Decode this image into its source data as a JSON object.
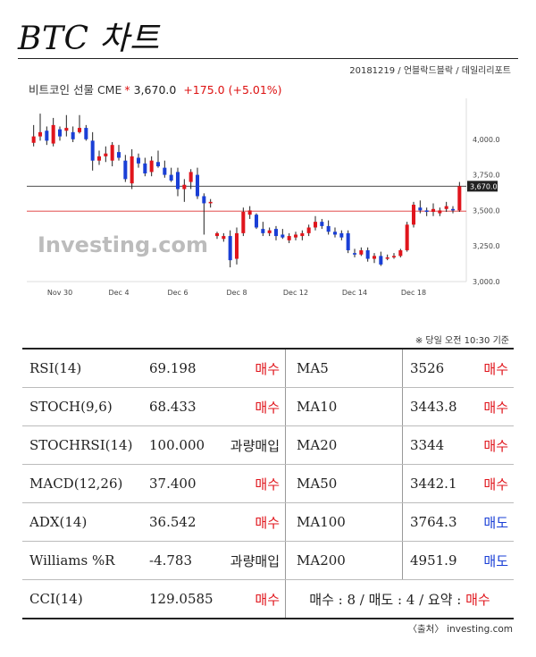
{
  "header": {
    "title": "BTC 차트",
    "meta": "20181219 / 언블락드블락 / 데일리리포트"
  },
  "quote": {
    "instrument": "비트코인 선물 CME",
    "marker": "*",
    "price": "3,670.0",
    "change": "+175.0",
    "change_pct": "(+5.01%)"
  },
  "watermark": "Investing.com",
  "colors": {
    "up": "#e0151c",
    "down": "#1a3fd6",
    "buy": "#e0151c",
    "sell": "#1a3fd6"
  },
  "chart_data": {
    "type": "candlestick",
    "x_tick_labels": [
      "Nov 30",
      "Dec 4",
      "Dec 6",
      "Dec 8",
      "Dec 12",
      "Dec 14",
      "Dec 18"
    ],
    "y_tick_labels": [
      "4,000.0",
      "3,750.0",
      "3,500.0",
      "3,250.0",
      "3,000.0"
    ],
    "ylim": [
      3000,
      4250
    ],
    "price_label": "3,670.0",
    "price_line": 3670,
    "reference_line": 3495,
    "candles": [
      {
        "o": 3975,
        "h": 4100,
        "l": 3950,
        "c": 4020
      },
      {
        "o": 4020,
        "h": 4180,
        "l": 3990,
        "c": 4050
      },
      {
        "o": 4060,
        "h": 4090,
        "l": 3960,
        "c": 3990
      },
      {
        "o": 3970,
        "h": 4150,
        "l": 3950,
        "c": 4100
      },
      {
        "o": 4070,
        "h": 4090,
        "l": 3990,
        "c": 4020
      },
      {
        "o": 4060,
        "h": 4170,
        "l": 4020,
        "c": 4080
      },
      {
        "o": 4050,
        "h": 4090,
        "l": 3980,
        "c": 4000
      },
      {
        "o": 4050,
        "h": 4170,
        "l": 4040,
        "c": 4080
      },
      {
        "o": 4080,
        "h": 4100,
        "l": 3990,
        "c": 4000
      },
      {
        "o": 3990,
        "h": 4050,
        "l": 3780,
        "c": 3850
      },
      {
        "o": 3850,
        "h": 3920,
        "l": 3820,
        "c": 3880
      },
      {
        "o": 3880,
        "h": 3950,
        "l": 3840,
        "c": 3900
      },
      {
        "o": 3850,
        "h": 3980,
        "l": 3810,
        "c": 3960
      },
      {
        "o": 3910,
        "h": 3960,
        "l": 3850,
        "c": 3870
      },
      {
        "o": 3850,
        "h": 3890,
        "l": 3700,
        "c": 3720
      },
      {
        "o": 3690,
        "h": 3930,
        "l": 3650,
        "c": 3880
      },
      {
        "o": 3870,
        "h": 3900,
        "l": 3800,
        "c": 3830
      },
      {
        "o": 3830,
        "h": 3870,
        "l": 3740,
        "c": 3760
      },
      {
        "o": 3770,
        "h": 3880,
        "l": 3740,
        "c": 3850
      },
      {
        "o": 3840,
        "h": 3920,
        "l": 3800,
        "c": 3810
      },
      {
        "o": 3800,
        "h": 3850,
        "l": 3730,
        "c": 3750
      },
      {
        "o": 3750,
        "h": 3800,
        "l": 3700,
        "c": 3710
      },
      {
        "o": 3770,
        "h": 3800,
        "l": 3600,
        "c": 3650
      },
      {
        "o": 3650,
        "h": 3720,
        "l": 3560,
        "c": 3680
      },
      {
        "o": 3700,
        "h": 3790,
        "l": 3650,
        "c": 3770
      },
      {
        "o": 3750,
        "h": 3800,
        "l": 3580,
        "c": 3600
      },
      {
        "o": 3600,
        "h": 3620,
        "l": 3330,
        "c": 3550
      },
      {
        "o": 3550,
        "h": 3580,
        "l": 3520,
        "c": 3560
      },
      {
        "o": 3320,
        "h": 3350,
        "l": 3300,
        "c": 3340
      },
      {
        "o": 3300,
        "h": 3340,
        "l": 3280,
        "c": 3320
      },
      {
        "o": 3320,
        "h": 3360,
        "l": 3100,
        "c": 3150
      },
      {
        "o": 3160,
        "h": 3380,
        "l": 3120,
        "c": 3340
      },
      {
        "o": 3340,
        "h": 3520,
        "l": 3320,
        "c": 3490
      },
      {
        "o": 3470,
        "h": 3530,
        "l": 3440,
        "c": 3500
      },
      {
        "o": 3470,
        "h": 3480,
        "l": 3370,
        "c": 3380
      },
      {
        "o": 3370,
        "h": 3420,
        "l": 3320,
        "c": 3340
      },
      {
        "o": 3340,
        "h": 3380,
        "l": 3320,
        "c": 3360
      },
      {
        "o": 3370,
        "h": 3390,
        "l": 3290,
        "c": 3320
      },
      {
        "o": 3330,
        "h": 3370,
        "l": 3300,
        "c": 3310
      },
      {
        "o": 3290,
        "h": 3340,
        "l": 3270,
        "c": 3320
      },
      {
        "o": 3310,
        "h": 3350,
        "l": 3290,
        "c": 3330
      },
      {
        "o": 3320,
        "h": 3360,
        "l": 3290,
        "c": 3340
      },
      {
        "o": 3340,
        "h": 3400,
        "l": 3320,
        "c": 3380
      },
      {
        "o": 3380,
        "h": 3460,
        "l": 3360,
        "c": 3420
      },
      {
        "o": 3420,
        "h": 3440,
        "l": 3370,
        "c": 3390
      },
      {
        "o": 3390,
        "h": 3430,
        "l": 3330,
        "c": 3350
      },
      {
        "o": 3350,
        "h": 3380,
        "l": 3310,
        "c": 3330
      },
      {
        "o": 3340,
        "h": 3360,
        "l": 3290,
        "c": 3310
      },
      {
        "o": 3340,
        "h": 3360,
        "l": 3200,
        "c": 3220
      },
      {
        "o": 3200,
        "h": 3230,
        "l": 3170,
        "c": 3190
      },
      {
        "o": 3190,
        "h": 3240,
        "l": 3180,
        "c": 3220
      },
      {
        "o": 3220,
        "h": 3240,
        "l": 3140,
        "c": 3160
      },
      {
        "o": 3160,
        "h": 3200,
        "l": 3130,
        "c": 3180
      },
      {
        "o": 3180,
        "h": 3210,
        "l": 3110,
        "c": 3120
      },
      {
        "o": 3160,
        "h": 3190,
        "l": 3150,
        "c": 3170
      },
      {
        "o": 3170,
        "h": 3200,
        "l": 3160,
        "c": 3180
      },
      {
        "o": 3180,
        "h": 3230,
        "l": 3170,
        "c": 3220
      },
      {
        "o": 3220,
        "h": 3420,
        "l": 3210,
        "c": 3400
      },
      {
        "o": 3400,
        "h": 3560,
        "l": 3380,
        "c": 3540
      },
      {
        "o": 3520,
        "h": 3570,
        "l": 3480,
        "c": 3500
      },
      {
        "o": 3500,
        "h": 3520,
        "l": 3460,
        "c": 3490
      },
      {
        "o": 3490,
        "h": 3550,
        "l": 3460,
        "c": 3510
      },
      {
        "o": 3480,
        "h": 3520,
        "l": 3460,
        "c": 3500
      },
      {
        "o": 3510,
        "h": 3560,
        "l": 3490,
        "c": 3530
      },
      {
        "o": 3510,
        "h": 3530,
        "l": 3480,
        "c": 3500
      },
      {
        "o": 3500,
        "h": 3700,
        "l": 3490,
        "c": 3670
      }
    ]
  },
  "indicators_note": "※ 당일 오전 10:30 기준",
  "indicators": [
    {
      "left": {
        "name": "RSI(14)",
        "value": "69.198",
        "action": "매수",
        "kind": "buy"
      },
      "right": {
        "name": "MA5",
        "value": "3526",
        "action": "매수",
        "kind": "buy"
      }
    },
    {
      "left": {
        "name": "STOCH(9,6)",
        "value": "68.433",
        "action": "매수",
        "kind": "buy"
      },
      "right": {
        "name": "MA10",
        "value": "3443.8",
        "action": "매수",
        "kind": "buy"
      }
    },
    {
      "left": {
        "name": "STOCHRSI(14)",
        "value": "100.000",
        "action": "과량매입",
        "kind": "over"
      },
      "right": {
        "name": "MA20",
        "value": "3344",
        "action": "매수",
        "kind": "buy"
      }
    },
    {
      "left": {
        "name": "MACD(12,26)",
        "value": "37.400",
        "action": "매수",
        "kind": "buy"
      },
      "right": {
        "name": "MA50",
        "value": "3442.1",
        "action": "매수",
        "kind": "buy"
      }
    },
    {
      "left": {
        "name": "ADX(14)",
        "value": "36.542",
        "action": "매수",
        "kind": "buy"
      },
      "right": {
        "name": "MA100",
        "value": "3764.3",
        "action": "매도",
        "kind": "sell"
      }
    },
    {
      "left": {
        "name": "Williams %R",
        "value": "-4.783",
        "action": "과량매입",
        "kind": "over"
      },
      "right": {
        "name": "MA200",
        "value": "4951.9",
        "action": "매도",
        "kind": "sell"
      }
    }
  ],
  "last_row": {
    "name": "CCI(14)",
    "value": "129.0585",
    "action": "매수",
    "kind": "buy",
    "summary_text": "매수 : 8 / 매도 : 4 / 요약 : ",
    "summary_action": "매수"
  },
  "source": "〈출처〉 investing.com"
}
